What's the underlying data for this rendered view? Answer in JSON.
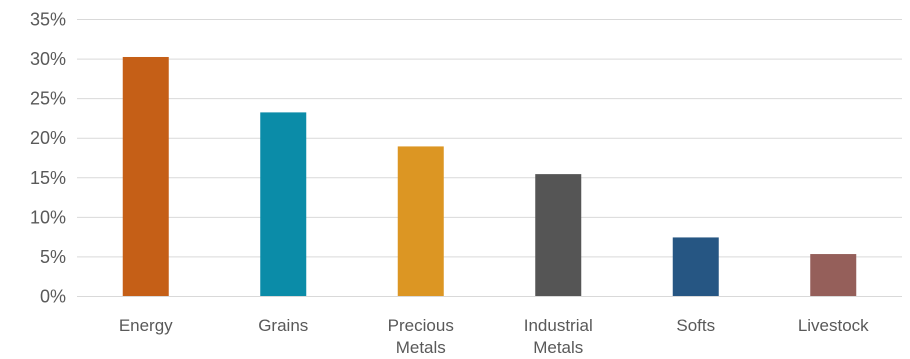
{
  "chart_data": {
    "type": "bar",
    "title": "",
    "xlabel": "",
    "ylabel": "",
    "categories": [
      "Energy",
      "Grains",
      "Precious Metals",
      "Industrial Metals",
      "Softs",
      "Livestock"
    ],
    "category_label_lines": [
      [
        "Energy"
      ],
      [
        "Grains"
      ],
      [
        "Precious",
        "Metals"
      ],
      [
        "Industrial",
        "Metals"
      ],
      [
        "Softs"
      ],
      [
        "Livestock"
      ]
    ],
    "values": [
      30.2,
      23.2,
      18.9,
      15.4,
      7.4,
      5.3
    ],
    "colors": [
      "#c55f17",
      "#0b8ca8",
      "#dc9623",
      "#555555",
      "#265683",
      "#955f5a"
    ],
    "ylim": [
      0,
      35
    ],
    "yticks": [
      0,
      5,
      10,
      15,
      20,
      25,
      30,
      35
    ],
    "ytick_labels": [
      "0%",
      "5%",
      "10%",
      "15%",
      "20%",
      "25%",
      "30%",
      "35%"
    ],
    "grid": true,
    "legend": "none"
  }
}
